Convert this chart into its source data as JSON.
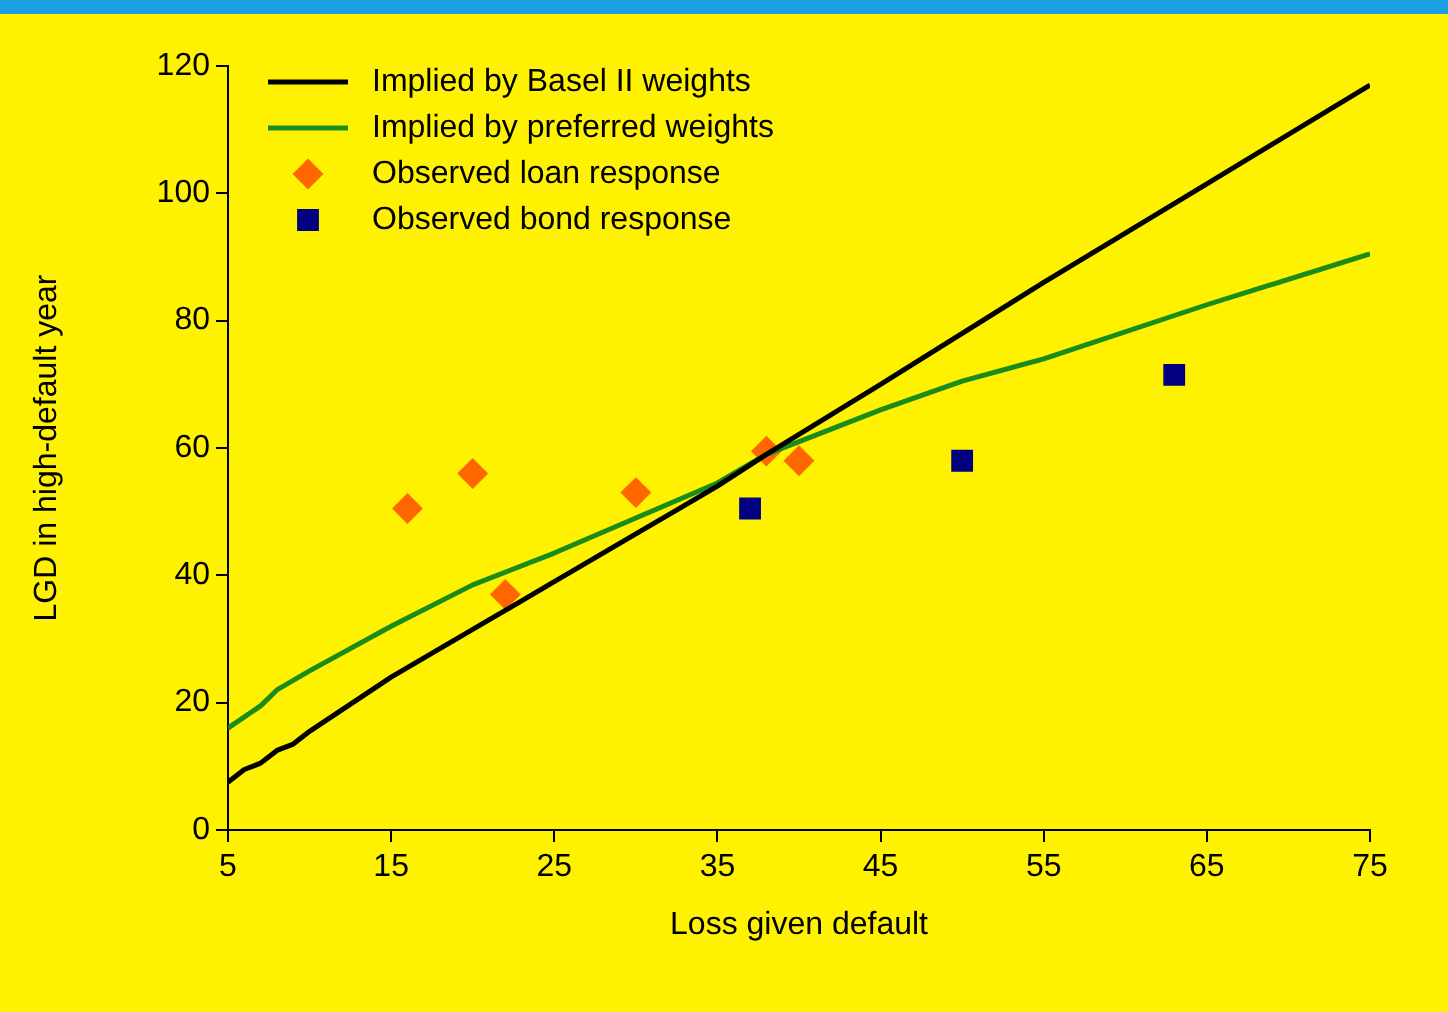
{
  "chart_data": {
    "type": "line",
    "xlabel": "Loss given default",
    "ylabel": "LGD in high-default year",
    "xlim": [
      5,
      75
    ],
    "xticks": [
      5,
      15,
      25,
      35,
      45,
      55,
      65,
      75
    ],
    "ylim": [
      0,
      120
    ],
    "yticks": [
      0,
      20,
      40,
      60,
      80,
      100,
      120
    ],
    "grid": false,
    "legend": "top left",
    "series": [
      {
        "name": "Implied by Basel II weights",
        "type": "line",
        "marker": "none",
        "color": "#000000",
        "x": [
          5,
          6,
          7,
          8,
          9,
          10,
          15,
          20,
          25,
          30,
          35,
          38,
          45,
          55,
          65,
          75
        ],
        "values": [
          7.5,
          9.5,
          10.5,
          12.5,
          13.5,
          15.5,
          24,
          31.5,
          39,
          46.5,
          54,
          59,
          70,
          86,
          101.5,
          117
        ]
      },
      {
        "name": "Implied by preferred weights",
        "type": "line",
        "marker": "none",
        "color": "#1a8c1a",
        "x": [
          5,
          7,
          8,
          10,
          15,
          20,
          25,
          30,
          35,
          38,
          45,
          50,
          55,
          65,
          75
        ],
        "values": [
          16,
          19.5,
          22,
          25,
          32,
          38.5,
          43.5,
          49,
          54.5,
          59,
          66,
          70.5,
          74,
          82.5,
          90.5
        ]
      },
      {
        "name": "Observed loan response",
        "type": "scatter",
        "marker": "diamond",
        "color": "#ff6600",
        "x": [
          16,
          20,
          22,
          30,
          38,
          40
        ],
        "values": [
          50.5,
          56,
          37,
          53,
          59.5,
          58
        ]
      },
      {
        "name": "Observed bond response",
        "type": "scatter",
        "marker": "square",
        "color": "#000080",
        "x": [
          37,
          50,
          63
        ],
        "values": [
          50.5,
          58,
          71.5
        ]
      }
    ]
  }
}
